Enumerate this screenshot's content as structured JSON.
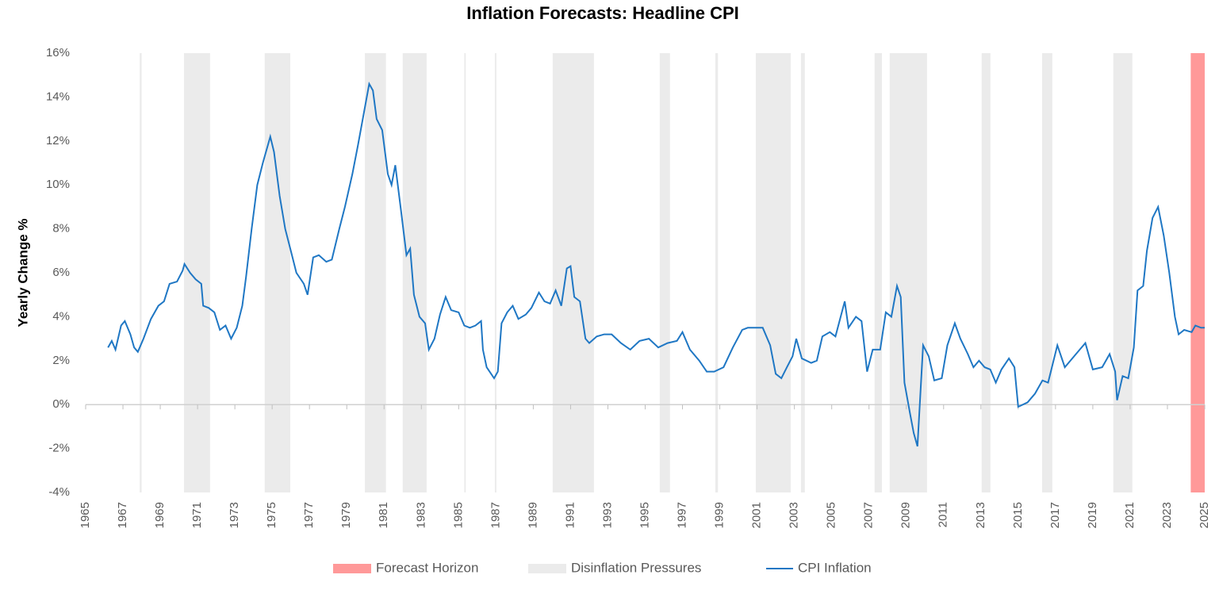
{
  "chart_data": {
    "type": "line",
    "title": "Inflation Forecasts: Headline CPI",
    "y_label": "Yearly Change %",
    "xlim": [
      1965,
      2025
    ],
    "xticks": [
      1965,
      1967,
      1969,
      1971,
      1973,
      1975,
      1977,
      1979,
      1981,
      1983,
      1985,
      1987,
      1989,
      1991,
      1993,
      1995,
      1997,
      1999,
      2001,
      2003,
      2005,
      2007,
      2009,
      2011,
      2013,
      2015,
      2017,
      2019,
      2021,
      2023,
      2025
    ],
    "ylim": [
      -4,
      16
    ],
    "yticks": [
      {
        "value": -4,
        "label": "-4%"
      },
      {
        "value": -2,
        "label": "-2%"
      },
      {
        "value": 0,
        "label": "0%"
      },
      {
        "value": 2,
        "label": "2%"
      },
      {
        "value": 4,
        "label": "4%"
      },
      {
        "value": 6,
        "label": "6%"
      },
      {
        "value": 8,
        "label": "8%"
      },
      {
        "value": 10,
        "label": "10%"
      },
      {
        "value": 12,
        "label": "12%"
      },
      {
        "value": 14,
        "label": "14%"
      },
      {
        "value": 16,
        "label": "16%"
      }
    ],
    "forecast": {
      "name": "Forecast Horizon",
      "color": "#ff9999",
      "ranges": [
        [
          2024.25,
          2025
        ]
      ]
    },
    "disinflation": {
      "name": "Disinflation Pressures",
      "color": "#ebebeb",
      "ranges": [
        [
          1967.9,
          1968.0
        ],
        [
          1970.27,
          1971.67
        ],
        [
          1974.6,
          1975.97
        ],
        [
          1979.97,
          1981.1
        ],
        [
          1982.0,
          1983.28
        ],
        [
          1985.3,
          1985.38
        ],
        [
          1986.94,
          1987.02
        ],
        [
          1990.04,
          1992.25
        ],
        [
          1995.78,
          1996.33
        ],
        [
          1998.76,
          1998.9
        ],
        [
          2000.93,
          2002.8
        ],
        [
          2003.35,
          2003.56
        ],
        [
          2007.3,
          2007.69
        ],
        [
          2008.11,
          2010.11
        ],
        [
          2013.04,
          2013.51
        ],
        [
          2016.28,
          2016.83
        ],
        [
          2020.1,
          2021.12
        ]
      ]
    },
    "series": [
      {
        "name": "CPI Inflation",
        "color": "#1f77c4",
        "x": [
          1966.2,
          1966.4,
          1966.6,
          1966.9,
          1967.1,
          1967.4,
          1967.6,
          1967.8,
          1968.1,
          1968.5,
          1968.9,
          1969.2,
          1969.5,
          1969.9,
          1970.2,
          1970.3,
          1970.6,
          1970.9,
          1971.2,
          1971.3,
          1971.6,
          1971.9,
          1972.2,
          1972.5,
          1972.8,
          1973.1,
          1973.4,
          1973.6,
          1973.9,
          1974.2,
          1974.5,
          1974.9,
          1975.1,
          1975.4,
          1975.7,
          1976.0,
          1976.3,
          1976.7,
          1976.9,
          1977.2,
          1977.5,
          1977.9,
          1978.2,
          1978.6,
          1978.9,
          1979.3,
          1979.6,
          1979.9,
          1980.2,
          1980.4,
          1980.6,
          1980.9,
          1981.2,
          1981.4,
          1981.6,
          1981.9,
          1982.2,
          1982.4,
          1982.6,
          1982.9,
          1983.2,
          1983.4,
          1983.7,
          1984.0,
          1984.3,
          1984.6,
          1985.0,
          1985.3,
          1985.6,
          1985.9,
          1986.2,
          1986.3,
          1986.5,
          1986.9,
          1987.1,
          1987.3,
          1987.6,
          1987.9,
          1988.2,
          1988.6,
          1988.9,
          1989.3,
          1989.6,
          1989.9,
          1990.2,
          1990.5,
          1990.8,
          1991.0,
          1991.2,
          1991.5,
          1991.8,
          1992.0,
          1992.4,
          1992.8,
          1993.2,
          1993.7,
          1994.2,
          1994.7,
          1995.2,
          1995.7,
          1996.2,
          1996.7,
          1997.0,
          1997.4,
          1997.9,
          1998.3,
          1998.7,
          1999.2,
          1999.7,
          2000.2,
          2000.5,
          2000.9,
          2001.3,
          2001.7,
          2002.0,
          2002.3,
          2002.6,
          2002.9,
          2003.1,
          2003.4,
          2003.9,
          2004.2,
          2004.5,
          2004.9,
          2005.2,
          2005.7,
          2005.9,
          2006.3,
          2006.6,
          2006.9,
          2007.2,
          2007.6,
          2007.9,
          2008.2,
          2008.5,
          2008.7,
          2008.9,
          2009.2,
          2009.4,
          2009.6,
          2009.9,
          2010.2,
          2010.5,
          2010.9,
          2011.2,
          2011.6,
          2011.9,
          2012.3,
          2012.6,
          2012.9,
          2013.2,
          2013.5,
          2013.8,
          2014.1,
          2014.5,
          2014.8,
          2015.0,
          2015.5,
          2015.9,
          2016.3,
          2016.6,
          2017.1,
          2017.5,
          2017.9,
          2018.3,
          2018.6,
          2019.0,
          2019.5,
          2019.9,
          2020.2,
          2020.3,
          2020.6,
          2020.9,
          2021.2,
          2021.4,
          2021.7,
          2021.9,
          2022.2,
          2022.5,
          2022.8,
          2023.1,
          2023.4,
          2023.6,
          2023.9,
          2024.3,
          2024.5,
          2024.8,
          2025.0
        ],
        "values": [
          2.6,
          2.9,
          2.5,
          3.6,
          3.8,
          3.2,
          2.6,
          2.4,
          3.0,
          3.9,
          4.5,
          4.7,
          5.5,
          5.6,
          6.1,
          6.4,
          6.0,
          5.7,
          5.5,
          4.5,
          4.4,
          4.2,
          3.4,
          3.6,
          3.0,
          3.5,
          4.5,
          5.8,
          8.0,
          10.0,
          11.0,
          12.2,
          11.5,
          9.5,
          8.0,
          7.0,
          6.0,
          5.5,
          5.0,
          6.7,
          6.8,
          6.5,
          6.6,
          8.0,
          9.0,
          10.5,
          11.8,
          13.2,
          14.6,
          14.3,
          13.0,
          12.5,
          10.5,
          10.0,
          10.9,
          8.9,
          6.8,
          7.1,
          5.0,
          4.0,
          3.7,
          2.5,
          3.0,
          4.1,
          4.9,
          4.3,
          4.2,
          3.6,
          3.5,
          3.6,
          3.8,
          2.5,
          1.7,
          1.2,
          1.5,
          3.7,
          4.2,
          4.5,
          3.9,
          4.1,
          4.4,
          5.1,
          4.7,
          4.6,
          5.2,
          4.5,
          6.2,
          6.3,
          4.9,
          4.7,
          3.0,
          2.8,
          3.1,
          3.2,
          3.2,
          2.8,
          2.5,
          2.9,
          3.0,
          2.6,
          2.8,
          2.9,
          3.3,
          2.5,
          2.0,
          1.5,
          1.5,
          1.7,
          2.6,
          3.4,
          3.5,
          3.5,
          3.5,
          2.7,
          1.4,
          1.2,
          1.7,
          2.2,
          3.0,
          2.1,
          1.9,
          2.0,
          3.1,
          3.3,
          3.1,
          4.7,
          3.5,
          4.0,
          3.8,
          1.5,
          2.5,
          2.5,
          4.2,
          4.0,
          5.4,
          4.9,
          1.0,
          -0.4,
          -1.3,
          -1.9,
          2.7,
          2.2,
          1.1,
          1.2,
          2.7,
          3.7,
          3.0,
          2.3,
          1.7,
          2.0,
          1.7,
          1.6,
          1.0,
          1.6,
          2.1,
          1.7,
          -0.1,
          0.1,
          0.5,
          1.1,
          1.0,
          2.7,
          1.7,
          2.1,
          2.5,
          2.8,
          1.6,
          1.7,
          2.3,
          1.5,
          0.2,
          1.3,
          1.2,
          2.6,
          5.2,
          5.4,
          7.0,
          8.5,
          9.0,
          7.7,
          6.0,
          4.0,
          3.2,
          3.4,
          3.3,
          3.6,
          3.5,
          3.5
        ]
      }
    ]
  }
}
